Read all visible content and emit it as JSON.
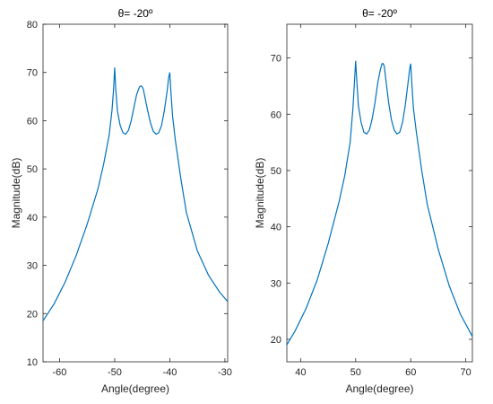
{
  "chart_data": [
    {
      "type": "line",
      "title": "θ= -20º",
      "xlabel": "Angle(degree)",
      "ylabel": "Magnitude(dB)",
      "xlim": [
        -63,
        -29.5
      ],
      "ylim": [
        10,
        80
      ],
      "xticks": [
        -60,
        -50,
        -40,
        -30
      ],
      "yticks": [
        10,
        20,
        30,
        40,
        50,
        60,
        70,
        80
      ],
      "grid": false,
      "color": "#0072BD",
      "series": [
        {
          "x": [
            -63,
            -61,
            -59,
            -57,
            -55,
            -53,
            -52,
            -51,
            -50.5,
            -50.2,
            -50,
            -49.8,
            -49.5,
            -49,
            -48.5,
            -48,
            -47.5,
            -47,
            -46.5,
            -46,
            -45.5,
            -45.2,
            -45,
            -44.8,
            -44.5,
            -44,
            -43.5,
            -43,
            -42.5,
            -42,
            -41.5,
            -41,
            -40.5,
            -40.2,
            -40,
            -39.8,
            -39.5,
            -39,
            -38,
            -37,
            -35,
            -33,
            -31,
            -29.5
          ],
          "y": [
            18.5,
            22,
            26.5,
            32,
            38.5,
            46,
            51,
            57,
            62,
            66.5,
            71,
            66.5,
            62,
            59,
            57.5,
            57.2,
            58,
            60,
            62.8,
            65.5,
            67,
            67.2,
            67,
            66.5,
            64.8,
            62,
            59.5,
            57.8,
            57.2,
            57.5,
            59,
            62,
            66,
            69,
            70,
            66,
            61,
            56,
            48,
            41,
            33,
            28,
            24.5,
            22.5
          ]
        }
      ]
    },
    {
      "type": "line",
      "title": "θ= -20º",
      "xlabel": "Angle(degree)",
      "ylabel": "Magnitude(dB)",
      "xlim": [
        37.5,
        71.2
      ],
      "ylim": [
        16,
        76
      ],
      "xticks": [
        40,
        50,
        60,
        70
      ],
      "yticks": [
        20,
        30,
        40,
        50,
        60,
        70
      ],
      "grid": false,
      "color": "#0072BD",
      "series": [
        {
          "x": [
            37.5,
            39,
            41,
            43,
            45,
            47,
            48,
            49,
            49.5,
            49.8,
            50,
            50.2,
            50.5,
            51,
            51.5,
            52,
            52.5,
            53,
            53.5,
            54,
            54.5,
            54.8,
            55,
            55.2,
            55.5,
            56,
            56.5,
            57,
            57.5,
            58,
            58.5,
            59,
            59.5,
            59.8,
            60,
            60.2,
            60.5,
            61,
            62,
            63,
            65,
            67,
            69,
            71.2
          ],
          "y": [
            19,
            21.5,
            25.5,
            30.5,
            37,
            44.5,
            49,
            55,
            61,
            66,
            69.5,
            66,
            61.5,
            58.5,
            56.8,
            56.5,
            57.2,
            59.2,
            62,
            65.5,
            68,
            69,
            69,
            68.5,
            66,
            62,
            59,
            57.2,
            56.5,
            56.8,
            58.5,
            61.5,
            65.5,
            68,
            69,
            65.5,
            61,
            57,
            50,
            44,
            36,
            29.5,
            24.5,
            20.5
          ]
        }
      ]
    }
  ]
}
